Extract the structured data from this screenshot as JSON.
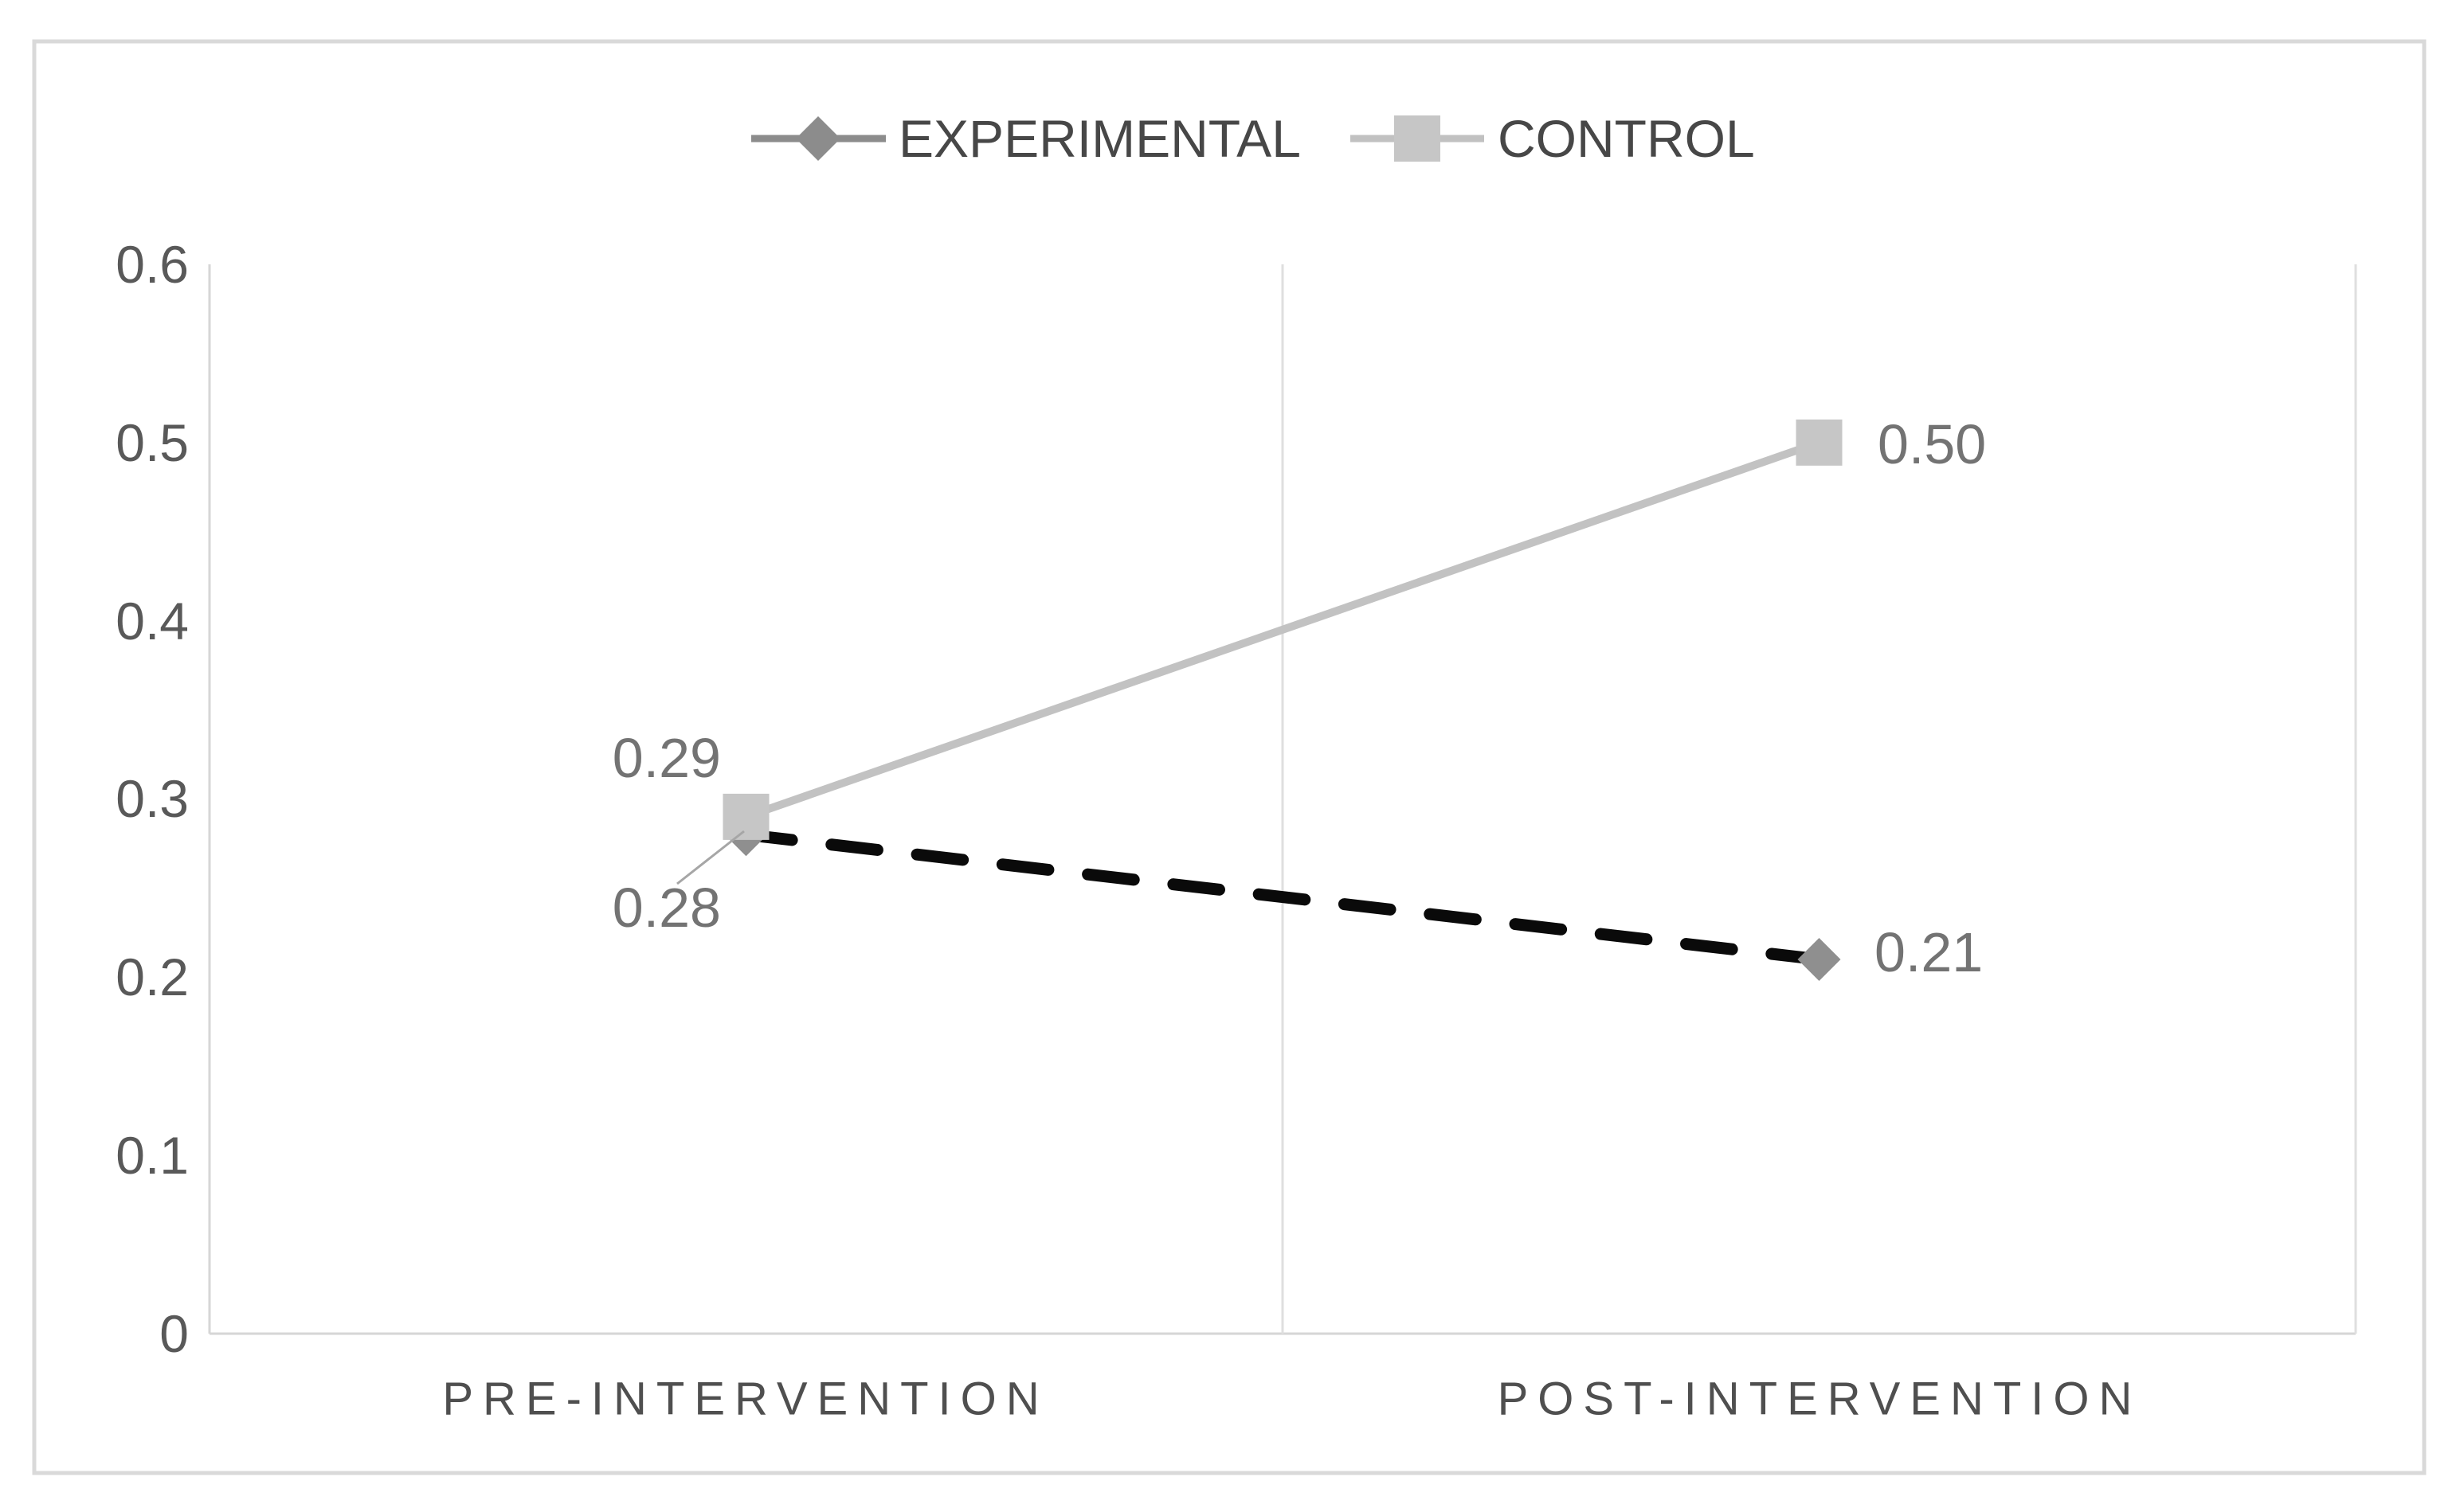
{
  "figure": {
    "background": "#ffffff",
    "border_color": "#d9d9d9"
  },
  "chart_data": {
    "type": "line",
    "title": "",
    "x_tick_labels": [
      "PRE-INTERVENTION",
      "POST-INTERVENTION"
    ],
    "series": [
      {
        "name": "EXPERIMENTAL",
        "values": [
          0.28,
          0.21
        ],
        "data_labels": [
          "0.28",
          "0.21"
        ],
        "line": {
          "color": "#0a0a0a",
          "style": "dashed",
          "width": 15,
          "dash": "58 50"
        },
        "marker": {
          "shape": "diamond",
          "color": "#8f8f8f",
          "size": 54
        },
        "legend": {
          "line_color": "#8c8c8c",
          "marker_color": "#8c8c8c"
        },
        "label_placement": [
          "below-left-with-leader",
          "right-of-point"
        ]
      },
      {
        "name": "CONTROL",
        "values": [
          0.29,
          0.5
        ],
        "data_labels": [
          "0.29",
          "0.50"
        ],
        "line": {
          "color": "#c2c2c2",
          "style": "solid",
          "width": 10,
          "dash": ""
        },
        "marker": {
          "shape": "square",
          "color": "#c6c6c6",
          "size": 58
        },
        "legend": {
          "line_color": "#c1c1c1",
          "marker_color": "#c6c6c6"
        },
        "label_placement": [
          "above-left-of-point",
          "right-of-point"
        ]
      }
    ],
    "y_axis": {
      "min": 0,
      "max": 0.6,
      "tick_labels_top_to_bottom": [
        "0.6",
        "0.5",
        "0.4",
        "0.3",
        "0.2",
        "0.1",
        "0"
      ],
      "tick_color": "#595959"
    },
    "gridlines": {
      "vertical": true,
      "horizontal": false,
      "color": "#dfdfdf"
    },
    "axis_line_color": "#d6d6d6",
    "leader_line_color": "#a6a6a6",
    "legend_position": "top-center",
    "data_label_color": "#737373",
    "category_label_color": "#4f4f4f",
    "legend_text_color": "#474747"
  }
}
